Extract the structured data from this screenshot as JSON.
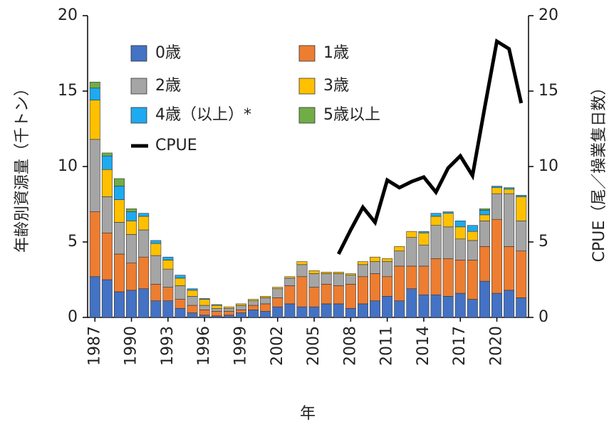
{
  "chart_data": {
    "type": "stacked-bar-line",
    "x": [
      1987,
      1988,
      1989,
      1990,
      1991,
      1992,
      1993,
      1994,
      1995,
      1996,
      1997,
      1998,
      1999,
      2000,
      2001,
      2002,
      2003,
      2004,
      2005,
      2006,
      2007,
      2008,
      2009,
      2010,
      2011,
      2012,
      2013,
      2014,
      2015,
      2016,
      2017,
      2018,
      2019,
      2020,
      2021,
      2022
    ],
    "xlim": [
      1986.4,
      2022.6
    ],
    "xticks": [
      1987,
      1990,
      1993,
      1996,
      1999,
      2002,
      2005,
      2008,
      2011,
      2014,
      2017,
      2020
    ],
    "xlabel": "年",
    "ylabel": "年齢別資源量（千トン）",
    "y2label": "CPUE（尾／操業隻日数）",
    "ylim": [
      0,
      20
    ],
    "yticks": [
      0,
      5,
      10,
      15,
      20
    ],
    "y2lim": [
      0,
      20
    ],
    "y2ticks": [
      0,
      5,
      10,
      15,
      20
    ],
    "series": [
      {
        "name": "0歳",
        "color": "#4472c4",
        "values": [
          2.7,
          2.5,
          1.7,
          1.8,
          1.9,
          1.1,
          1.1,
          0.6,
          0.3,
          0.15,
          0.1,
          0.15,
          0.3,
          0.5,
          0.4,
          0.7,
          0.9,
          0.7,
          0.7,
          0.9,
          0.9,
          0.6,
          0.9,
          1.1,
          1.4,
          1.1,
          1.9,
          1.5,
          1.5,
          1.4,
          1.6,
          1.2,
          2.4,
          1.6,
          1.8,
          1.3
        ]
      },
      {
        "name": "1歳",
        "color": "#ed7d31",
        "values": [
          4.3,
          3.1,
          2.5,
          1.8,
          2.1,
          1.1,
          0.9,
          0.6,
          0.5,
          0.35,
          0.3,
          0.25,
          0.2,
          0.3,
          0.5,
          0.6,
          1.2,
          2.0,
          1.3,
          1.3,
          1.2,
          1.6,
          1.8,
          1.8,
          1.3,
          2.3,
          1.5,
          1.9,
          2.4,
          2.5,
          2.2,
          2.6,
          2.3,
          4.9,
          2.9,
          3.1
        ]
      },
      {
        "name": "2歳",
        "color": "#a5a5a5",
        "values": [
          4.8,
          2.4,
          2.1,
          1.9,
          1.8,
          1.9,
          1.2,
          0.9,
          0.6,
          0.3,
          0.2,
          0.2,
          0.3,
          0.3,
          0.4,
          0.6,
          0.5,
          0.8,
          0.9,
          0.7,
          0.8,
          0.6,
          0.8,
          0.8,
          1.0,
          1.0,
          1.9,
          1.4,
          2.2,
          2.1,
          1.4,
          1.3,
          1.7,
          1.7,
          3.5,
          2.0
        ]
      },
      {
        "name": "3歳",
        "color": "#ffc000",
        "values": [
          2.6,
          1.8,
          1.5,
          0.9,
          0.9,
          0.8,
          0.6,
          0.5,
          0.4,
          0.4,
          0.2,
          0.1,
          0.1,
          0.1,
          0.1,
          0.1,
          0.1,
          0.2,
          0.2,
          0.1,
          0.1,
          0.1,
          0.2,
          0.3,
          0.2,
          0.3,
          0.4,
          0.8,
          0.6,
          0.9,
          0.8,
          0.6,
          0.4,
          0.4,
          0.3,
          1.6
        ]
      },
      {
        "name": "4歳（以上）*",
        "color": "#1eaaf0",
        "values": [
          0.8,
          0.9,
          0.9,
          0.6,
          0.2,
          0.2,
          0.2,
          0.2,
          0.1,
          0.05,
          0.05,
          0,
          0,
          0,
          0,
          0,
          0,
          0,
          0,
          0,
          0,
          0,
          0,
          0,
          0,
          0,
          0,
          0.1,
          0.2,
          0.1,
          0.4,
          0.4,
          0.3,
          0.1,
          0.1,
          0.1
        ]
      },
      {
        "name": "5歳以上",
        "color": "#70ad47",
        "values": [
          0.4,
          0.2,
          0.5,
          0.2,
          0,
          0,
          0,
          0,
          0,
          0,
          0,
          0,
          0,
          0,
          0,
          0,
          0,
          0,
          0,
          0,
          0,
          0,
          0,
          0,
          0,
          0,
          0,
          0,
          0,
          0,
          0,
          0,
          0.1,
          0,
          0,
          0
        ]
      },
      {
        "name": "CPUE",
        "color": "#000000",
        "axis": "y2",
        "values": [
          null,
          null,
          null,
          null,
          null,
          null,
          null,
          null,
          null,
          null,
          null,
          null,
          null,
          null,
          null,
          null,
          null,
          null,
          null,
          null,
          4.2,
          5.8,
          7.3,
          6.3,
          9.1,
          8.6,
          9.0,
          9.3,
          8.3,
          9.9,
          10.7,
          9.4,
          13.9,
          18.3,
          17.8,
          14.2
        ]
      }
    ]
  }
}
